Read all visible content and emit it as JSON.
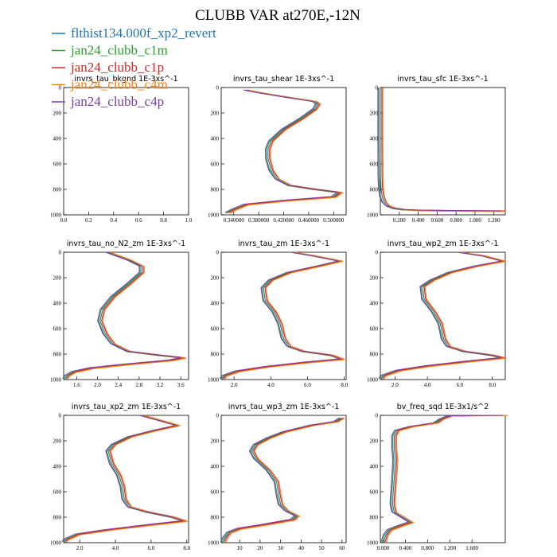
{
  "figure_title": "CLUBB VAR at270E,-12N",
  "colors": {
    "flthist134.000f_xp2_revert": "#1f77b4",
    "jan24_clubb_c1m": "#2ca02c",
    "jan24_clubb_c1p": "#d62728",
    "jan24_clubb_c4m": "#ff7f0e",
    "jan24_clubb_c4p": "#7b3fa0"
  },
  "legend": [
    {
      "label": "flthist134.000f_xp2_revert",
      "color": "#1f77b4"
    },
    {
      "label": "jan24_clubb_c1m",
      "color": "#2ca02c"
    },
    {
      "label": "jan24_clubb_c1p",
      "color": "#d62728"
    },
    {
      "label": "jan24_clubb_c4m",
      "color": "#ff7f0e"
    },
    {
      "label": "jan24_clubb_c4p",
      "color": "#7b3fa0"
    }
  ],
  "chart_data": [
    {
      "type": "line",
      "title": "invrs_tau_bkgnd 1E-3xs^-1",
      "xlim": [
        0,
        1
      ],
      "ylim": [
        1000,
        0
      ],
      "xticks": [
        "0.0",
        "0.2",
        "0.4",
        "0.6",
        "0.8",
        "1.0"
      ],
      "xtick_values": [
        0,
        0.2,
        0.4,
        0.6,
        0.8,
        1.0
      ],
      "yticks": [
        "0",
        "200",
        "400",
        "600",
        "800",
        "1000"
      ],
      "series": []
    },
    {
      "type": "line",
      "title": "invrs_tau_shear 1E-3xs^-1",
      "xlim": [
        0.32,
        0.52
      ],
      "ylim": [
        1000,
        0
      ],
      "xticks": [
        "0.340000",
        "0.380000",
        "0.420000",
        "0.460000",
        "0.500000"
      ],
      "xtick_values": [
        0.34,
        0.38,
        0.42,
        0.46,
        0.5
      ],
      "yticks": [
        "0",
        "200",
        "400",
        "600",
        "800",
        "1000"
      ],
      "profile": [
        [
          0.36,
          20
        ],
        [
          0.38,
          40
        ],
        [
          0.43,
          80
        ],
        [
          0.47,
          110
        ],
        [
          0.475,
          130
        ],
        [
          0.47,
          170
        ],
        [
          0.45,
          240
        ],
        [
          0.42,
          330
        ],
        [
          0.4,
          420
        ],
        [
          0.395,
          480
        ],
        [
          0.395,
          560
        ],
        [
          0.4,
          650
        ],
        [
          0.41,
          720
        ],
        [
          0.43,
          770
        ],
        [
          0.47,
          800
        ],
        [
          0.51,
          825
        ],
        [
          0.5,
          860
        ],
        [
          0.42,
          890
        ],
        [
          0.36,
          920
        ],
        [
          0.34,
          960
        ],
        [
          0.33,
          985
        ]
      ]
    },
    {
      "type": "line",
      "title": "invrs_tau_sfc 1E-3xs^-1",
      "xlim": [
        0,
        1.32
      ],
      "ylim": [
        1000,
        0
      ],
      "xticks": [
        "0.200",
        "0.400",
        "0.600",
        "0.800",
        "1.000",
        "1.200"
      ],
      "xtick_values": [
        0.2,
        0.4,
        0.6,
        0.8,
        1.0,
        1.2
      ],
      "yticks": [
        "0",
        "200",
        "400",
        "600",
        "800",
        "1000"
      ],
      "profile": [
        [
          0.0,
          0
        ],
        [
          0.0,
          400
        ],
        [
          0.002,
          700
        ],
        [
          0.008,
          800
        ],
        [
          0.02,
          860
        ],
        [
          0.04,
          900
        ],
        [
          0.08,
          930
        ],
        [
          0.15,
          950
        ],
        [
          0.25,
          960
        ],
        [
          0.4,
          965
        ],
        [
          0.7,
          968
        ],
        [
          1.0,
          970
        ],
        [
          1.3,
          971
        ]
      ]
    },
    {
      "type": "line",
      "title": "invrs_tau_no_N2_zm 1E-3xs^-1",
      "xlim": [
        1.35,
        3.75
      ],
      "ylim": [
        1000,
        0
      ],
      "xticks": [
        "1.6",
        "2.0",
        "2.4",
        "2.8",
        "3.2",
        "3.6"
      ],
      "xtick_values": [
        1.6,
        2.0,
        2.4,
        2.8,
        3.2,
        3.6
      ],
      "yticks": [
        "0",
        "200",
        "400",
        "600",
        "800",
        "1000"
      ],
      "profile": [
        [
          2.2,
          0
        ],
        [
          2.6,
          60
        ],
        [
          2.85,
          110
        ],
        [
          2.85,
          160
        ],
        [
          2.6,
          250
        ],
        [
          2.3,
          350
        ],
        [
          2.1,
          450
        ],
        [
          2.05,
          540
        ],
        [
          2.15,
          640
        ],
        [
          2.3,
          720
        ],
        [
          2.6,
          780
        ],
        [
          3.2,
          810
        ],
        [
          3.65,
          830
        ],
        [
          3.4,
          850
        ],
        [
          2.6,
          880
        ],
        [
          1.9,
          910
        ],
        [
          1.55,
          940
        ],
        [
          1.42,
          970
        ],
        [
          1.38,
          995
        ]
      ]
    },
    {
      "type": "line",
      "title": "invrs_tau_zm 1E-3xs^-1",
      "xlim": [
        1.3,
        8.1
      ],
      "ylim": [
        1000,
        0
      ],
      "xticks": [
        "2.0",
        "4.0",
        "6.0",
        "8.0"
      ],
      "xtick_values": [
        2,
        4,
        6,
        8
      ],
      "yticks": [
        "0",
        "200",
        "400",
        "600",
        "800",
        "1000"
      ],
      "profile": [
        [
          5.2,
          0
        ],
        [
          6.4,
          30
        ],
        [
          7.8,
          70
        ],
        [
          6.6,
          110
        ],
        [
          5.0,
          160
        ],
        [
          4.0,
          220
        ],
        [
          3.6,
          280
        ],
        [
          3.7,
          380
        ],
        [
          4.2,
          470
        ],
        [
          4.5,
          560
        ],
        [
          4.7,
          680
        ],
        [
          5.0,
          740
        ],
        [
          5.8,
          780
        ],
        [
          7.3,
          810
        ],
        [
          7.9,
          840
        ],
        [
          6.0,
          865
        ],
        [
          3.8,
          900
        ],
        [
          2.2,
          935
        ],
        [
          1.5,
          970
        ],
        [
          1.35,
          995
        ]
      ]
    },
    {
      "type": "line",
      "title": "invrs_tau_wp2_zm 1E-3xs^-1",
      "xlim": [
        1.1,
        8.8
      ],
      "ylim": [
        1000,
        0
      ],
      "xticks": [
        "2.0",
        "4.0",
        "6.0",
        "8.0"
      ],
      "xtick_values": [
        2,
        4,
        6,
        8
      ],
      "yticks": [
        "0",
        "200",
        "400",
        "600",
        "800",
        "1000"
      ],
      "profile": [
        [
          6.0,
          0
        ],
        [
          7.5,
          30
        ],
        [
          8.7,
          70
        ],
        [
          7.0,
          110
        ],
        [
          5.4,
          160
        ],
        [
          4.3,
          220
        ],
        [
          3.7,
          270
        ],
        [
          3.8,
          370
        ],
        [
          4.4,
          470
        ],
        [
          4.8,
          560
        ],
        [
          5.0,
          680
        ],
        [
          5.3,
          740
        ],
        [
          6.3,
          780
        ],
        [
          8.0,
          810
        ],
        [
          8.7,
          830
        ],
        [
          6.4,
          860
        ],
        [
          4.0,
          895
        ],
        [
          2.2,
          930
        ],
        [
          1.3,
          970
        ],
        [
          1.15,
          995
        ]
      ]
    },
    {
      "type": "line",
      "title": "invrs_tau_xp2_zm 1E-3xs^-1",
      "xlim": [
        1.1,
        8.1
      ],
      "ylim": [
        1000,
        0
      ],
      "xticks": [
        "2.0",
        "4.0",
        "6.0",
        "8.0"
      ],
      "xtick_values": [
        2,
        4,
        6,
        8
      ],
      "yticks": [
        "0",
        "200",
        "400",
        "600",
        "800",
        "1000"
      ],
      "profile": [
        [
          5.5,
          0
        ],
        [
          6.5,
          40
        ],
        [
          7.5,
          80
        ],
        [
          6.2,
          120
        ],
        [
          4.8,
          170
        ],
        [
          3.9,
          230
        ],
        [
          3.6,
          280
        ],
        [
          3.8,
          380
        ],
        [
          4.2,
          470
        ],
        [
          4.4,
          560
        ],
        [
          4.5,
          660
        ],
        [
          4.8,
          720
        ],
        [
          5.8,
          760
        ],
        [
          7.2,
          800
        ],
        [
          7.9,
          830
        ],
        [
          6.0,
          860
        ],
        [
          3.6,
          900
        ],
        [
          1.9,
          935
        ],
        [
          1.25,
          975
        ],
        [
          1.15,
          995
        ]
      ]
    },
    {
      "type": "line",
      "title": "invrs_tau_wp3_zm 1E-3xs^-1",
      "xlim": [
        1,
        62
      ],
      "ylim": [
        1000,
        0
      ],
      "xticks": [
        "10",
        "20",
        "30",
        "40",
        "50",
        "60"
      ],
      "xtick_values": [
        10,
        20,
        30,
        40,
        50,
        60
      ],
      "yticks": [
        "0",
        "200",
        "400",
        "600",
        "800",
        "1000"
      ],
      "profile": [
        [
          60,
          20
        ],
        [
          57,
          50
        ],
        [
          45,
          80
        ],
        [
          32,
          130
        ],
        [
          24,
          180
        ],
        [
          18,
          230
        ],
        [
          16,
          280
        ],
        [
          18,
          340
        ],
        [
          24,
          430
        ],
        [
          28,
          520
        ],
        [
          29,
          620
        ],
        [
          30,
          700
        ],
        [
          33,
          750
        ],
        [
          38,
          790
        ],
        [
          36,
          820
        ],
        [
          22,
          860
        ],
        [
          10,
          890
        ],
        [
          5,
          920
        ],
        [
          3,
          960
        ],
        [
          2,
          995
        ]
      ]
    },
    {
      "type": "line",
      "title": "bv_freq_sqd 1E-3x1/s^2",
      "xlim": [
        -0.05,
        2.2
      ],
      "ylim": [
        1000,
        0
      ],
      "xticks": [
        "0.000",
        "0.400",
        "0.800",
        "1.200",
        "1.600"
      ],
      "xtick_values": [
        0,
        0.4,
        0.8,
        1.2,
        1.6
      ],
      "yticks": [
        "0",
        "200",
        "400",
        "600",
        "800",
        "1000"
      ],
      "profile": [
        [
          2.2,
          0
        ],
        [
          1.2,
          5
        ],
        [
          1.05,
          30
        ],
        [
          0.95,
          60
        ],
        [
          0.5,
          90
        ],
        [
          0.25,
          120
        ],
        [
          0.2,
          160
        ],
        [
          0.2,
          250
        ],
        [
          0.22,
          350
        ],
        [
          0.2,
          500
        ],
        [
          0.18,
          620
        ],
        [
          0.17,
          700
        ],
        [
          0.2,
          760
        ],
        [
          0.35,
          800
        ],
        [
          0.5,
          840
        ],
        [
          0.3,
          870
        ],
        [
          0.12,
          900
        ],
        [
          0.05,
          940
        ],
        [
          0.02,
          980
        ],
        [
          0.0,
          1000
        ]
      ]
    }
  ]
}
